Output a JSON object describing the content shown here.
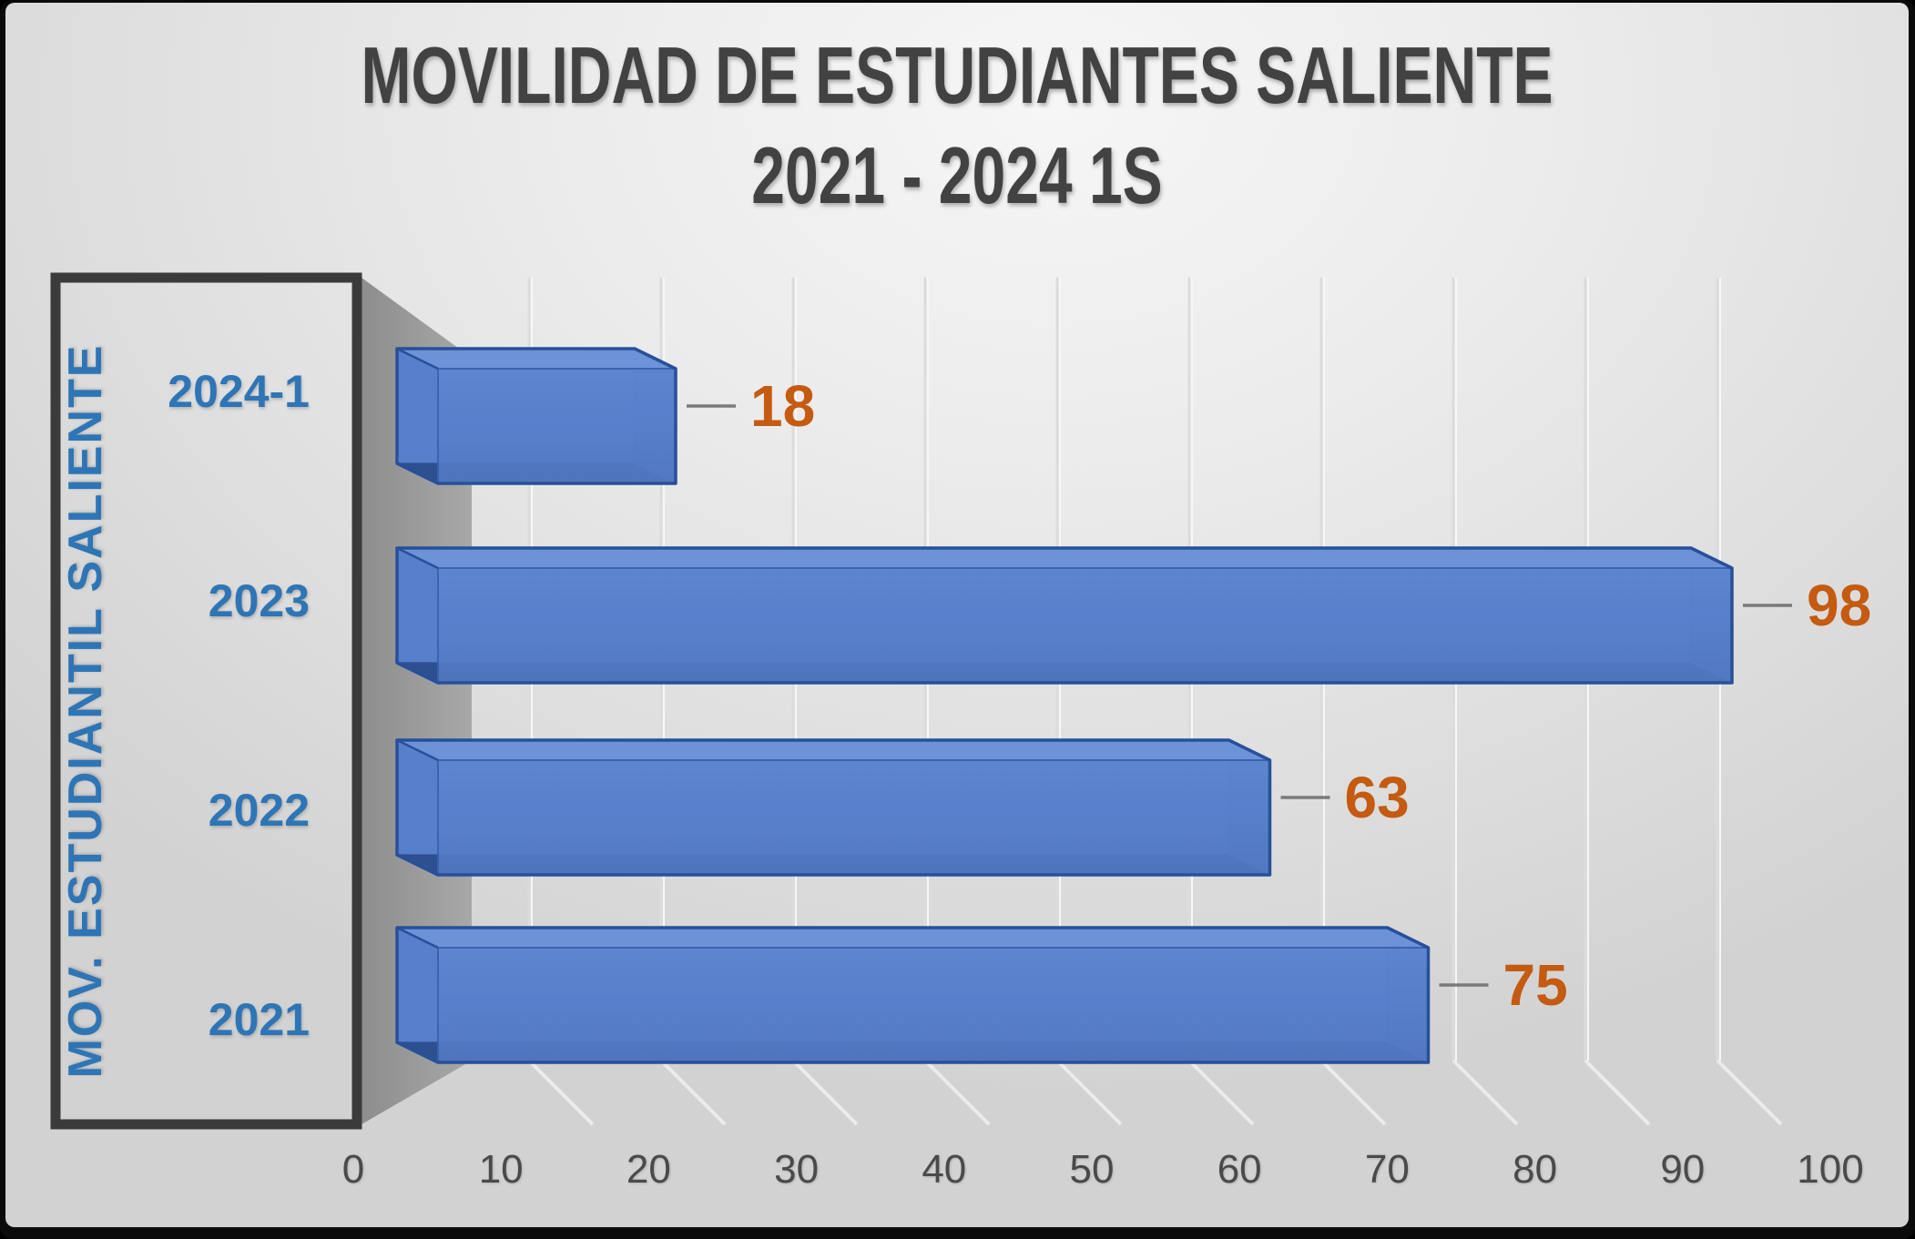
{
  "chart_data": {
    "type": "bar",
    "orientation": "horizontal",
    "style": "3d-glassy-excel",
    "title": "MOVILIDAD DE ESTUDIANTES SALIENTE",
    "subtitle": "2021 - 2024 1S",
    "ylabel": "MOV. ESTUDIANTIL SALIENTE",
    "xlabel": "",
    "categories": [
      "2024-1",
      "2023",
      "2022",
      "2021"
    ],
    "values": [
      18,
      98,
      63,
      75
    ],
    "data_labels": [
      "18",
      "98",
      "63",
      "75"
    ],
    "x_ticks": [
      "0",
      "10",
      "20",
      "30",
      "40",
      "50",
      "60",
      "70",
      "80",
      "90",
      "100"
    ],
    "xlim": [
      0,
      100
    ],
    "grid": true,
    "legend": false,
    "colors": {
      "bar_front": "#5E86D1",
      "bar_back": "#587FCB",
      "bar_top": "#6E92D8",
      "bar_side": "#4C76C2",
      "bar_bottom": "#2E5090",
      "bar_border": "#27509A",
      "data_label": "#C55A11",
      "category_label": "#2E75B6",
      "axis_title": "#2E75B6",
      "tick_label": "#4A4A4A",
      "title_text": "#424242",
      "leader_line": "#7A7A7A",
      "wall_border": "#3B3B3B",
      "wall_band": "#9A9A9A",
      "gridline": "#DCDCDC"
    }
  }
}
